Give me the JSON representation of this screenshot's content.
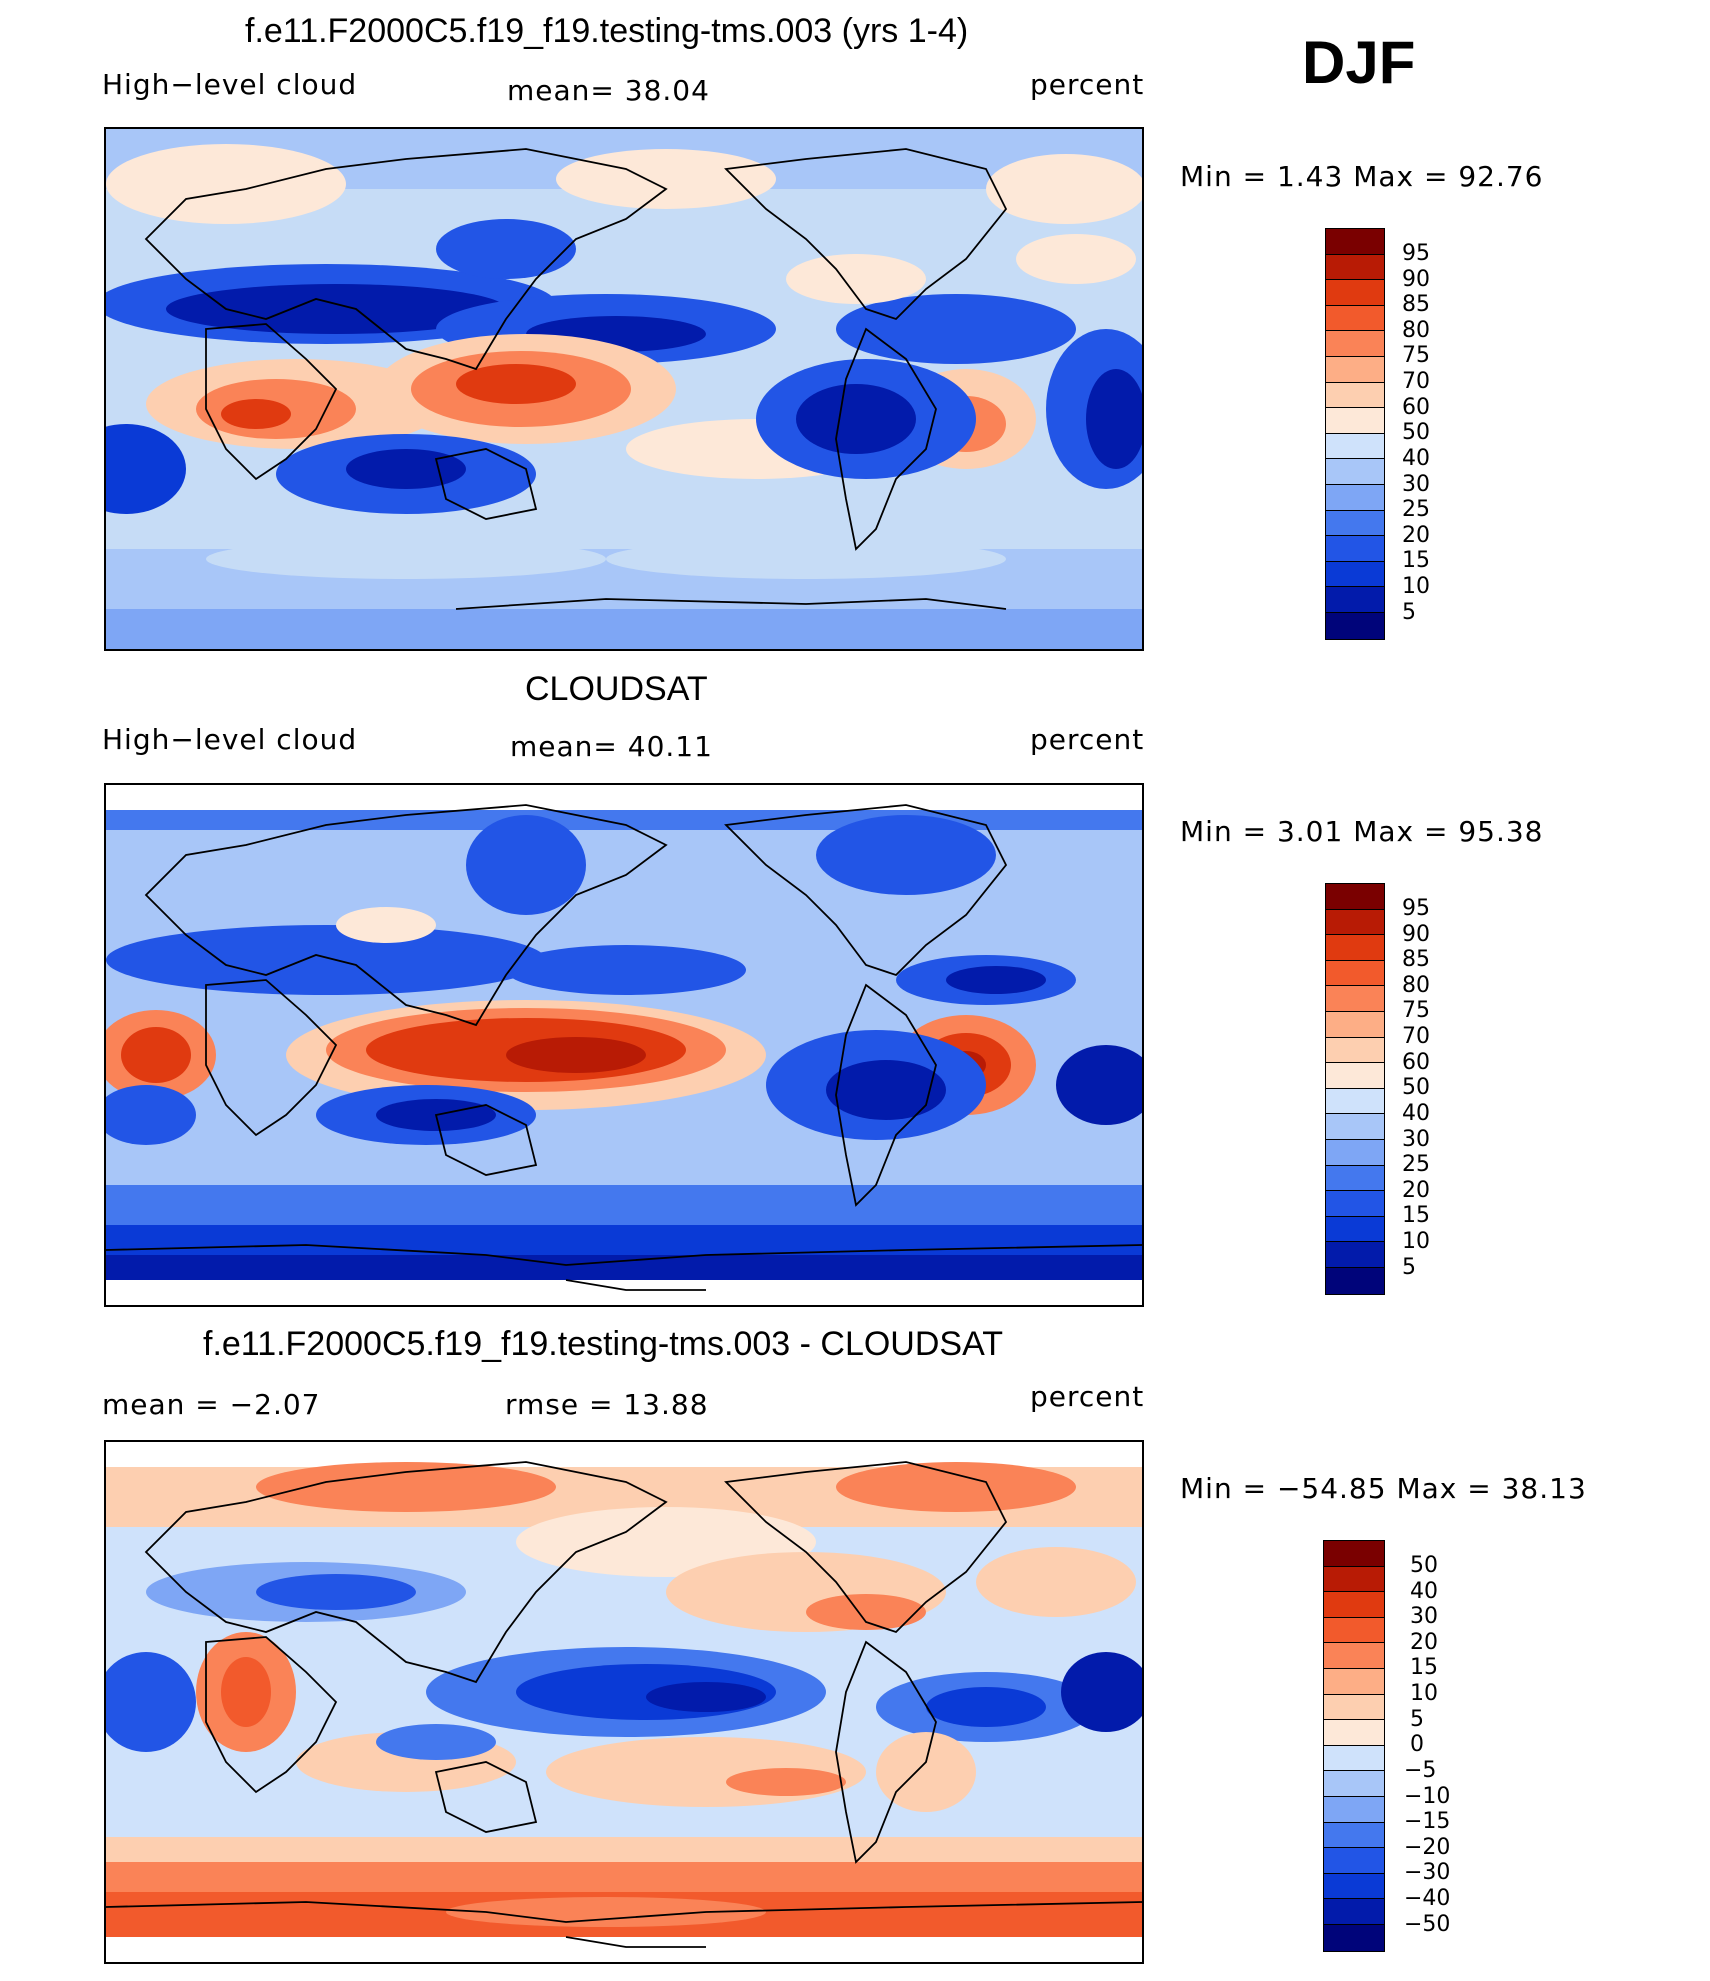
{
  "season": "DJF",
  "colors": {
    "pos_scale": [
      "#00047a",
      "#021bab",
      "#0a3ad6",
      "#2255e6",
      "#4478ee",
      "#7ea6f5",
      "#a8c6f8",
      "#cfe2fb",
      "#fde8d8",
      "#fdcfb0",
      "#fdae86",
      "#fa8357",
      "#f25a2c",
      "#e03a10",
      "#b81b05",
      "#7a0000"
    ],
    "diff_scale": [
      "#00047a",
      "#021bab",
      "#0a3ad6",
      "#2255e6",
      "#4478ee",
      "#7ea6f5",
      "#a8c6f8",
      "#cfe2fb",
      "#fde8d8",
      "#fdcfb0",
      "#fdae86",
      "#fa8357",
      "#f25a2c",
      "#e03a10",
      "#b81b05",
      "#7a0000"
    ]
  },
  "panels": [
    {
      "title": "f.e11.F2000C5.f19_f19.testing-tms.003 (yrs 1-4)",
      "left_label": "High−level cloud",
      "center_label": "mean=   38.04",
      "right_label": "percent",
      "minmax": "Min =    1.43 Max =   92.76",
      "colorbar_ticks": [
        "95",
        "90",
        "85",
        "80",
        "75",
        "70",
        "60",
        "50",
        "40",
        "30",
        "25",
        "20",
        "15",
        "10",
        "5"
      ]
    },
    {
      "title": "CLOUDSAT",
      "left_label": "High−level cloud",
      "center_label": "mean=   40.11",
      "right_label": "percent",
      "minmax": "Min =    3.01 Max =   95.38",
      "colorbar_ticks": [
        "95",
        "90",
        "85",
        "80",
        "75",
        "70",
        "60",
        "50",
        "40",
        "30",
        "25",
        "20",
        "15",
        "10",
        "5"
      ]
    },
    {
      "title": "f.e11.F2000C5.f19_f19.testing-tms.003 - CLOUDSAT",
      "left_label": "mean =   −2.07",
      "center_label": "rmse =   13.88",
      "right_label": "percent",
      "minmax": "Min = −54.85 Max =   38.13",
      "colorbar_ticks": [
        "50",
        "40",
        "30",
        "20",
        "15",
        "10",
        "5",
        "0",
        "−5",
        "−10",
        "−15",
        "−20",
        "−30",
        "−40",
        "−50"
      ]
    }
  ]
}
